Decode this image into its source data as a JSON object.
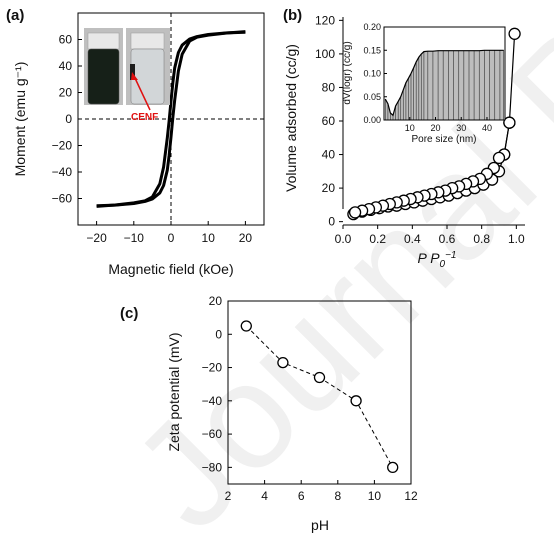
{
  "panels": {
    "a": {
      "label": "(a)",
      "photo_annotation": "CENF"
    },
    "b": {
      "label": "(b)"
    },
    "c": {
      "label": "(c)"
    }
  },
  "watermark": "Journal Pre-proof",
  "chart_data": [
    {
      "panel": "a",
      "type": "line",
      "title": "",
      "xlabel": "Magnetic field (kOe)",
      "ylabel": "Moment (emu g⁻¹)",
      "xlim": [
        -25,
        25
      ],
      "ylim": [
        -80,
        80
      ],
      "xticks": [
        -20,
        -10,
        0,
        10,
        20
      ],
      "yticks": [
        -60,
        -40,
        -20,
        0,
        20,
        40,
        60
      ],
      "reference_lines": {
        "x": 0,
        "y": 0,
        "style": "dashed"
      },
      "series": [
        {
          "x": [
            -20,
            -15,
            -10,
            -7,
            -5,
            -3,
            -2,
            -1,
            -0.5,
            0,
            0.5,
            1,
            2,
            3,
            5,
            7,
            10,
            15,
            20
          ],
          "y": [
            -65.5,
            -65,
            -63.8,
            -62.2,
            -60.3,
            -55.8,
            -50.2,
            -38.6,
            -27.7,
            -13.6,
            1.6,
            14.3,
            36.3,
            49,
            58.8,
            61.7,
            63.3,
            64.9,
            66
          ]
        },
        {
          "x": [
            -20,
            -15,
            -10,
            -7,
            -5,
            -3,
            -2,
            -1,
            -0.5,
            0,
            0.5,
            1,
            2,
            3,
            5,
            7,
            10,
            15,
            20
          ],
          "y": [
            -66,
            -64.9,
            -63.3,
            -61.7,
            -58.8,
            -49,
            -36.3,
            -14.3,
            -1.6,
            13.6,
            27.7,
            38.6,
            50.2,
            55.8,
            60.3,
            62.2,
            63.8,
            65,
            65.5
          ]
        }
      ]
    },
    {
      "panel": "b",
      "type": "scatter",
      "title": "",
      "xlabel": "P P₀⁻¹",
      "ylabel": "Volume adsorbed (cc/g)",
      "xlim": [
        0,
        1.05
      ],
      "ylim": [
        -2,
        122
      ],
      "xticks": [
        0.0,
        0.2,
        0.4,
        0.6,
        0.8,
        1.0
      ],
      "xtick_labels": [
        "0.0",
        "0.2",
        "0.4",
        "0.6",
        "0.8",
        "1.0"
      ],
      "yticks": [
        0,
        20,
        40,
        60,
        80,
        100,
        120
      ],
      "series": [
        {
          "x": [
            0.06,
            0.11,
            0.16,
            0.21,
            0.26,
            0.31,
            0.36,
            0.41,
            0.46,
            0.51,
            0.56,
            0.61,
            0.66,
            0.71,
            0.76,
            0.81,
            0.86,
            0.9,
            0.93,
            0.96,
            0.99
          ],
          "y": [
            4.5,
            6,
            7,
            8,
            9,
            9.5,
            10.5,
            11.5,
            12.5,
            13.5,
            14.5,
            15.5,
            17,
            18.5,
            20,
            22,
            25,
            30,
            40,
            59,
            112
          ]
        },
        {
          "x": [
            0.96,
            0.93,
            0.9,
            0.87,
            0.83,
            0.79,
            0.75,
            0.71,
            0.67,
            0.63,
            0.59,
            0.55,
            0.51,
            0.47,
            0.43,
            0.39,
            0.35,
            0.31,
            0.27,
            0.23,
            0.19,
            0.15,
            0.11,
            0.07
          ],
          "y": [
            59,
            40,
            38,
            32,
            28.5,
            25.5,
            24,
            22.5,
            21,
            20,
            18.5,
            17.5,
            16.5,
            15.5,
            14.5,
            13.5,
            12.5,
            11.5,
            10.5,
            9.5,
            8.5,
            7.5,
            6.5,
            5.5
          ]
        }
      ],
      "inset": {
        "type": "area",
        "xlabel": "Pore size (nm)",
        "ylabel": "dV(logr) (cc/g)",
        "xlim": [
          0,
          47
        ],
        "ylim": [
          0,
          0.2
        ],
        "xticks": [
          10,
          20,
          30,
          40
        ],
        "yticks": [
          0.0,
          0.05,
          0.1,
          0.15,
          0.2
        ],
        "ytick_labels": [
          "0.00",
          "0.05",
          "0.10",
          "0.15",
          "0.20"
        ],
        "x": [
          0.5,
          1.5,
          2.5,
          3.5,
          4.5,
          5.5,
          6.5,
          7.5,
          8.5,
          9.5,
          10.5,
          11.5,
          12.5,
          13.5,
          14.5,
          15.5,
          17,
          19,
          21,
          23,
          25,
          27,
          29,
          31,
          33,
          35,
          37,
          39,
          41,
          43,
          45,
          46.5
        ],
        "y": [
          0.045,
          0.035,
          0.015,
          0.01,
          0.03,
          0.04,
          0.05,
          0.065,
          0.08,
          0.09,
          0.1,
          0.112,
          0.125,
          0.135,
          0.142,
          0.147,
          0.148,
          0.148,
          0.149,
          0.149,
          0.149,
          0.149,
          0.149,
          0.149,
          0.149,
          0.149,
          0.149,
          0.15,
          0.15,
          0.15,
          0.15,
          0.15
        ]
      }
    },
    {
      "panel": "c",
      "type": "line",
      "title": "",
      "xlabel": "pH",
      "ylabel": "Zeta potential (mV)",
      "xlim": [
        2,
        12
      ],
      "ylim": [
        -90,
        20
      ],
      "xticks": [
        2,
        4,
        6,
        8,
        10,
        12
      ],
      "yticks": [
        -80,
        -60,
        -40,
        -20,
        0,
        20
      ],
      "line_style": "dashed",
      "marker": "open-circle",
      "series": [
        {
          "x": [
            3,
            5,
            7,
            9,
            11
          ],
          "y": [
            5,
            -17,
            -26,
            -40,
            -80
          ]
        }
      ]
    }
  ]
}
